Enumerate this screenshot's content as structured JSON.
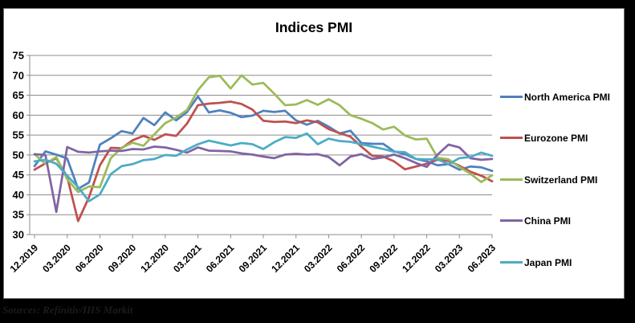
{
  "chart": {
    "title": "Indices PMI"
  },
  "footer": {
    "text": "Sources: Refinitiv/IHS Markit"
  },
  "chart_data": {
    "type": "line",
    "title": "Indices PMI",
    "ylim": [
      30,
      75
    ],
    "y_step": 5,
    "y_ticks": [
      30,
      35,
      40,
      45,
      50,
      55,
      60,
      65,
      70,
      75
    ],
    "grid": true,
    "legend_position": "right",
    "x_tick_labels": [
      "12.2019",
      "03.2020",
      "06.2020",
      "09.2020",
      "12.2020",
      "03.2021",
      "06.2021",
      "09.2021",
      "12.2021",
      "03.2022",
      "06.2022",
      "09.2022",
      "12.2022",
      "03.2023",
      "06.2023"
    ],
    "categories": [
      "12.2019",
      "01.2020",
      "02.2020",
      "03.2020",
      "04.2020",
      "05.2020",
      "06.2020",
      "07.2020",
      "08.2020",
      "09.2020",
      "10.2020",
      "11.2020",
      "12.2020",
      "01.2021",
      "02.2021",
      "03.2021",
      "04.2021",
      "05.2021",
      "06.2021",
      "07.2021",
      "08.2021",
      "09.2021",
      "10.2021",
      "11.2021",
      "12.2021",
      "01.2022",
      "02.2022",
      "03.2022",
      "04.2022",
      "05.2022",
      "06.2022",
      "07.2022",
      "08.2022",
      "09.2022",
      "10.2022",
      "11.2022",
      "12.2022",
      "01.2023",
      "02.2023",
      "03.2023",
      "04.2023",
      "05.2023",
      "06.2023"
    ],
    "series": [
      {
        "name": "North America PMI",
        "color": "#4F81BD",
        "values": [
          47.2,
          50.9,
          50.1,
          49.1,
          41.5,
          43.1,
          52.6,
          54.2,
          56.0,
          55.4,
          59.3,
          57.5,
          60.7,
          58.7,
          60.8,
          64.7,
          60.7,
          61.2,
          60.6,
          59.5,
          59.9,
          61.1,
          60.8,
          61.1,
          58.7,
          57.6,
          58.6,
          57.1,
          55.4,
          56.1,
          53.0,
          52.8,
          52.8,
          50.9,
          50.2,
          49.0,
          48.4,
          47.4,
          47.7,
          46.3,
          47.1,
          46.9,
          46.0
        ]
      },
      {
        "name": "Eurozone PMI",
        "color": "#C0504D",
        "values": [
          46.3,
          47.9,
          49.2,
          44.5,
          33.4,
          39.4,
          47.4,
          51.8,
          51.7,
          53.7,
          54.8,
          53.8,
          55.2,
          54.8,
          57.9,
          62.5,
          62.9,
          63.1,
          63.4,
          62.8,
          61.4,
          58.6,
          58.3,
          58.4,
          58.0,
          58.7,
          58.2,
          56.5,
          55.5,
          54.6,
          52.1,
          49.8,
          49.6,
          48.4,
          46.4,
          47.1,
          47.8,
          48.8,
          48.5,
          47.3,
          45.8,
          44.8,
          43.4
        ]
      },
      {
        "name": "Switzerland PMI",
        "color": "#9BBB59",
        "values": [
          50.2,
          47.8,
          49.5,
          43.9,
          40.7,
          42.1,
          41.9,
          49.2,
          51.8,
          53.1,
          52.3,
          55.2,
          58.0,
          59.4,
          61.3,
          66.3,
          69.5,
          69.9,
          66.7,
          70.0,
          67.7,
          68.1,
          65.4,
          62.5,
          62.7,
          63.8,
          62.6,
          64.0,
          62.5,
          60.0,
          59.1,
          58.0,
          56.4,
          57.1,
          54.9,
          53.9,
          54.1,
          49.3,
          48.9,
          47.0,
          45.3,
          43.2,
          44.9
        ]
      },
      {
        "name": "China PMI",
        "color": "#8064A2",
        "values": [
          50.2,
          50.0,
          35.7,
          52.0,
          50.8,
          50.6,
          50.9,
          51.1,
          51.0,
          51.5,
          51.4,
          52.1,
          51.9,
          51.3,
          50.6,
          51.9,
          51.1,
          51.0,
          50.9,
          50.4,
          50.1,
          49.6,
          49.2,
          50.1,
          50.3,
          50.1,
          50.2,
          49.5,
          47.4,
          49.6,
          50.2,
          49.0,
          49.4,
          50.1,
          49.2,
          48.0,
          47.0,
          50.1,
          52.6,
          51.9,
          49.2,
          48.8,
          49.0
        ]
      },
      {
        "name": "Japan PMI",
        "color": "#4BACC6",
        "values": [
          48.4,
          48.8,
          47.8,
          44.8,
          41.9,
          38.4,
          40.1,
          45.2,
          47.2,
          47.7,
          48.7,
          49.0,
          50.0,
          49.8,
          51.4,
          52.7,
          53.6,
          53.0,
          52.4,
          53.0,
          52.7,
          51.5,
          53.2,
          54.5,
          54.3,
          55.4,
          52.7,
          54.1,
          53.5,
          53.3,
          52.7,
          52.1,
          51.5,
          50.8,
          50.7,
          49.0,
          48.9,
          48.9,
          47.7,
          49.2,
          49.5,
          50.6,
          49.8
        ]
      }
    ]
  }
}
